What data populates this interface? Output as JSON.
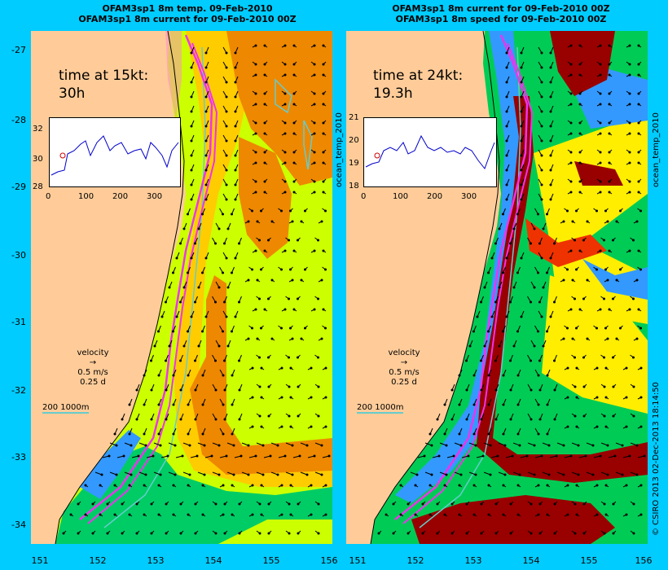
{
  "left": {
    "title_line1": "OFAM3sp1 8m temp. 09-Feb-2010",
    "title_line2": "OFAM3sp1 8m current for 09-Feb-2010 00Z",
    "time_label": "time at 15kt:",
    "time_value": "30h",
    "inset_y_ticks": [
      "32",
      "30",
      "28"
    ],
    "inset_x_ticks": [
      "0",
      "100",
      "200",
      "300"
    ],
    "side_label": "ocean_temp_2010",
    "colors": {
      "land": "#ffcc99",
      "warm": "#ee8800",
      "mid": "#ffcc00",
      "cool": "#ccff00",
      "cold": "#00cc66"
    }
  },
  "right": {
    "title_line1": "OFAM3sp1 8m current for 09-Feb-2010 00Z",
    "title_line2": "OFAM3sp1 8m speed for 09-Feb-2010 00Z",
    "time_label": "time at 24kt:",
    "time_value": "19.3h",
    "inset_y_ticks": [
      "21",
      "20",
      "19",
      "18"
    ],
    "inset_x_ticks": [
      "0",
      "100",
      "200",
      "300"
    ],
    "side_label": "ocean_temp_2010",
    "colors": {
      "land": "#ffcc99",
      "fast": "#990000",
      "high": "#ee3300",
      "mid": "#ffee00",
      "low": "#00cc55",
      "slow": "#3399ff"
    }
  },
  "y_ticks": [
    "-27",
    "-28",
    "-29",
    "-30",
    "-31",
    "-32",
    "-33",
    "-34"
  ],
  "x_ticks": [
    "151",
    "152",
    "153",
    "154",
    "155",
    "156"
  ],
  "velocity_key": {
    "label": "velocity",
    "speed": "0.5 m/s",
    "duration": "0.25 d"
  },
  "depth_key": {
    "label": "200  1000m"
  },
  "credit": "© CSIRO 2013  02-Dec-2013 18:14:50",
  "track_color": "#ee33ee",
  "contour_color": "#66cccc"
}
